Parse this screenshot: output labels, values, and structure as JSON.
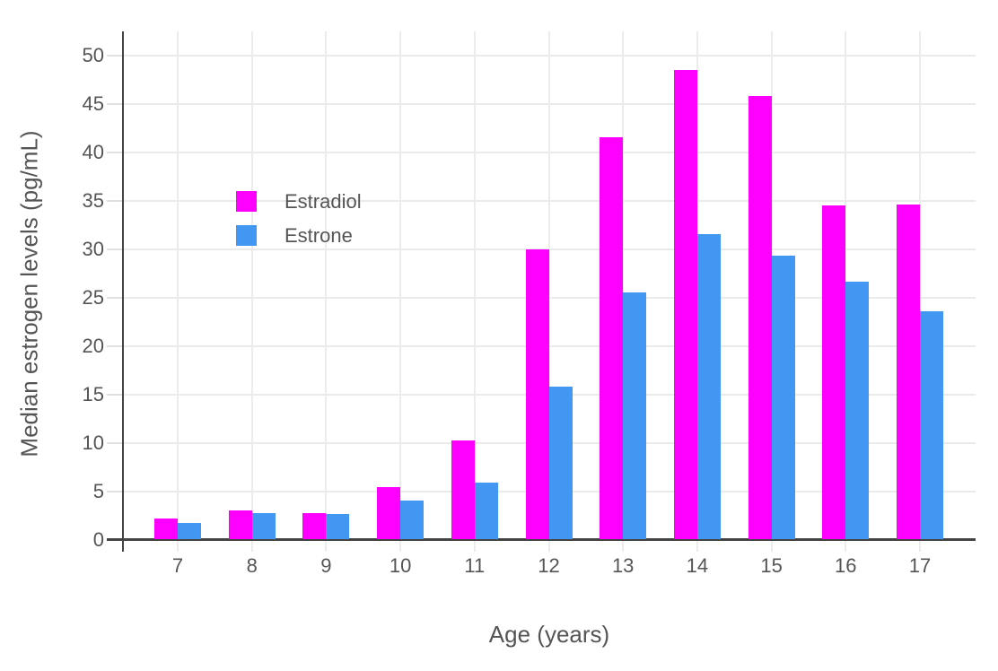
{
  "chart_data": {
    "type": "bar",
    "title": "",
    "xlabel": "Age (years)",
    "ylabel": "Median estrogen levels (pg/mL)",
    "categories": [
      "7",
      "8",
      "9",
      "10",
      "11",
      "12",
      "13",
      "14",
      "15",
      "16",
      "17"
    ],
    "series": [
      {
        "name": "Estradiol",
        "color": "#ff00ff",
        "values": [
          2.2,
          3.0,
          2.7,
          5.4,
          10.2,
          30.0,
          41.6,
          48.5,
          45.8,
          34.5,
          34.6
        ]
      },
      {
        "name": "Estrone",
        "color": "#4197f1",
        "values": [
          1.7,
          2.7,
          2.6,
          4.0,
          5.9,
          15.8,
          25.5,
          31.6,
          29.3,
          26.6,
          23.6
        ]
      }
    ],
    "ylim": [
      0,
      52.5
    ],
    "yticks": [
      0,
      5,
      10,
      15,
      20,
      25,
      30,
      35,
      40,
      45,
      50
    ],
    "grid": true,
    "legend_position": "inside-upper-left",
    "colors": {
      "axis": "#444444",
      "gridline": "#ebebeb",
      "tick_text": "#555555",
      "background": "#ffffff"
    }
  }
}
